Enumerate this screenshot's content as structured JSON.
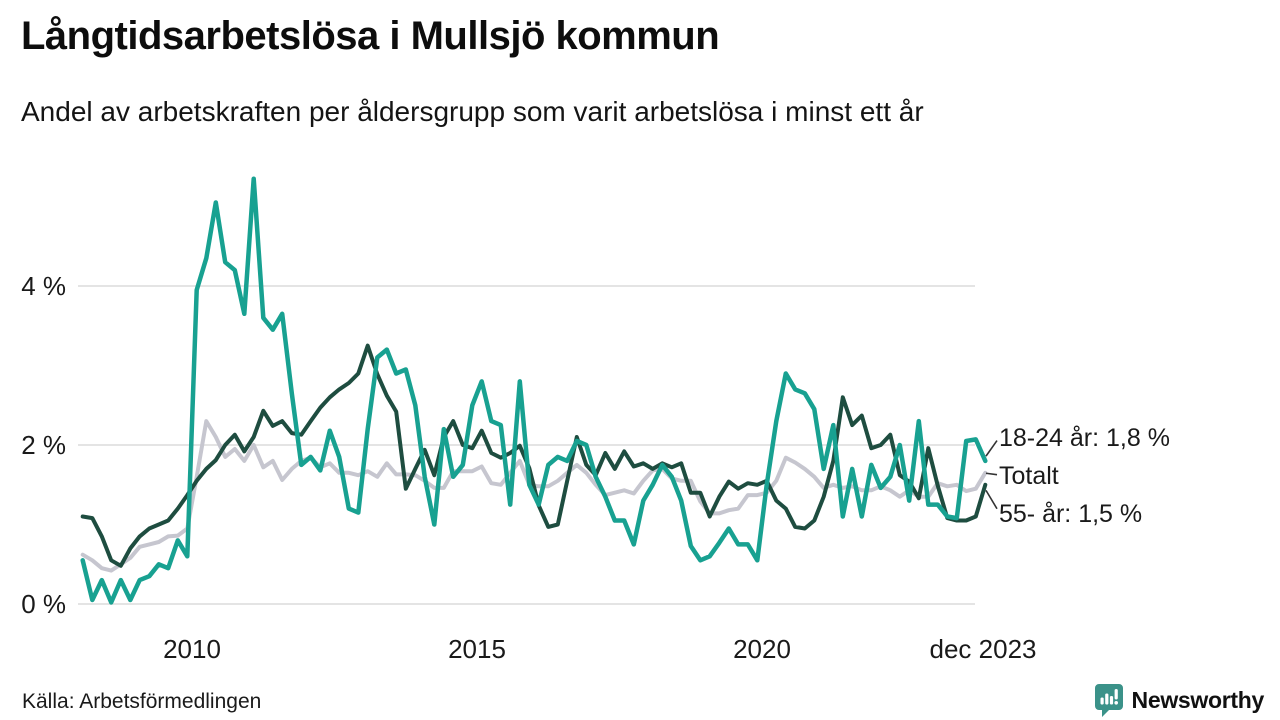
{
  "header": {
    "title": "Långtidsarbetslösa i Mullsjö kommun",
    "subtitle": "Andel av arbetskraften per åldersgrupp som varit arbetslösa i minst ett år"
  },
  "footer": {
    "source": "Källa: Arbetsförmedlingen",
    "brand": "Newsworthy"
  },
  "colors": {
    "teal": "#18a191",
    "gray": "#c6c6cf",
    "dark_green": "#1e4d40",
    "grid": "#e4e4e4",
    "leader": "#333333",
    "brand_teal": "#3b9289",
    "brand_text": "#23606b"
  },
  "chart_data": {
    "type": "line",
    "title": "Långtidsarbetslösa i Mullsjö kommun",
    "subtitle": "Andel av arbetskraften per åldersgrupp som varit arbetslösa i minst ett år",
    "unit": "% av arbetskraften",
    "x_axis": {
      "tick_labels": [
        "2010",
        "2015",
        "2020",
        "dec 2023"
      ],
      "tick_years": [
        2010,
        2015,
        2020,
        2023.92
      ],
      "range_years": [
        2008.05,
        2023.95
      ],
      "resolution": "monthly (sampled every 2 months)"
    },
    "y_axis": {
      "tick_labels": [
        "0 %",
        "2 %",
        "4 %"
      ],
      "tick_values": [
        0,
        2,
        4
      ],
      "ylim": [
        0,
        5.5
      ],
      "grid": true
    },
    "sampling": {
      "start_year": 2008,
      "points_per_year": 6
    },
    "series": [
      {
        "name": "18-24 år",
        "end_label": "18-24 år: 1,8 %",
        "end_value": 1.8,
        "color_key": "teal",
        "values": [
          0.55,
          0.05,
          0.3,
          0.02,
          0.3,
          0.05,
          0.3,
          0.35,
          0.5,
          0.45,
          0.8,
          0.6,
          3.95,
          4.35,
          5.05,
          4.3,
          4.2,
          3.65,
          5.35,
          3.6,
          3.45,
          3.65,
          2.65,
          1.75,
          1.85,
          1.68,
          2.18,
          1.85,
          1.2,
          1.15,
          2.2,
          3.1,
          3.2,
          2.9,
          2.95,
          2.5,
          1.6,
          1.0,
          2.2,
          1.6,
          1.75,
          2.5,
          2.8,
          2.3,
          2.25,
          1.25,
          2.8,
          1.5,
          1.25,
          1.75,
          1.85,
          1.8,
          2.05,
          2.0,
          1.6,
          1.35,
          1.05,
          1.05,
          0.75,
          1.3,
          1.5,
          1.75,
          1.6,
          1.3,
          0.73,
          0.55,
          0.6,
          0.77,
          0.95,
          0.75,
          0.75,
          0.55,
          1.5,
          2.3,
          2.9,
          2.7,
          2.65,
          2.45,
          1.7,
          2.25,
          1.1,
          1.7,
          1.1,
          1.75,
          1.46,
          1.6,
          2.0,
          1.3,
          2.3,
          1.25,
          1.25,
          1.1,
          1.08,
          2.05,
          2.07,
          1.8
        ]
      },
      {
        "name": "Totalt",
        "end_label": "Totalt",
        "end_value": 1.65,
        "color_key": "gray",
        "values": [
          0.62,
          0.55,
          0.45,
          0.42,
          0.5,
          0.58,
          0.72,
          0.75,
          0.78,
          0.85,
          0.86,
          0.95,
          1.6,
          2.3,
          2.1,
          1.85,
          1.95,
          1.8,
          2.0,
          1.72,
          1.8,
          1.56,
          1.7,
          1.8,
          1.84,
          1.72,
          1.77,
          1.65,
          1.65,
          1.62,
          1.67,
          1.6,
          1.77,
          1.63,
          1.63,
          1.62,
          1.55,
          1.46,
          1.46,
          1.67,
          1.67,
          1.67,
          1.73,
          1.52,
          1.5,
          1.65,
          1.8,
          1.5,
          1.48,
          1.48,
          1.55,
          1.65,
          1.75,
          1.65,
          1.5,
          1.37,
          1.4,
          1.43,
          1.39,
          1.55,
          1.68,
          1.7,
          1.58,
          1.55,
          1.55,
          1.29,
          1.14,
          1.14,
          1.18,
          1.2,
          1.37,
          1.37,
          1.4,
          1.55,
          1.84,
          1.78,
          1.7,
          1.6,
          1.46,
          1.5,
          1.46,
          1.48,
          1.43,
          1.43,
          1.48,
          1.43,
          1.35,
          1.43,
          1.35,
          1.35,
          1.52,
          1.48,
          1.5,
          1.42,
          1.45,
          1.65
        ]
      },
      {
        "name": "55- år",
        "end_label": "55- år: 1,5 %",
        "end_value": 1.5,
        "color_key": "dark_green",
        "values": [
          1.1,
          1.08,
          0.85,
          0.55,
          0.48,
          0.7,
          0.85,
          0.95,
          1.0,
          1.05,
          1.2,
          1.37,
          1.55,
          1.7,
          1.81,
          2.0,
          2.13,
          1.92,
          2.1,
          2.43,
          2.24,
          2.3,
          2.15,
          2.13,
          2.3,
          2.47,
          2.6,
          2.7,
          2.78,
          2.9,
          3.25,
          2.89,
          2.62,
          2.42,
          1.45,
          1.7,
          1.94,
          1.62,
          2.1,
          2.3,
          2.0,
          1.96,
          2.18,
          1.9,
          1.84,
          1.9,
          1.99,
          1.71,
          1.24,
          0.97,
          1.0,
          1.55,
          2.1,
          1.75,
          1.62,
          1.9,
          1.7,
          1.92,
          1.73,
          1.77,
          1.7,
          1.77,
          1.72,
          1.77,
          1.4,
          1.4,
          1.1,
          1.35,
          1.54,
          1.45,
          1.52,
          1.5,
          1.55,
          1.3,
          1.2,
          0.97,
          0.95,
          1.05,
          1.35,
          1.8,
          2.6,
          2.25,
          2.37,
          1.96,
          2.0,
          2.13,
          1.62,
          1.54,
          1.33,
          1.96,
          1.49,
          1.08,
          1.05,
          1.05,
          1.1,
          1.5
        ]
      }
    ]
  }
}
